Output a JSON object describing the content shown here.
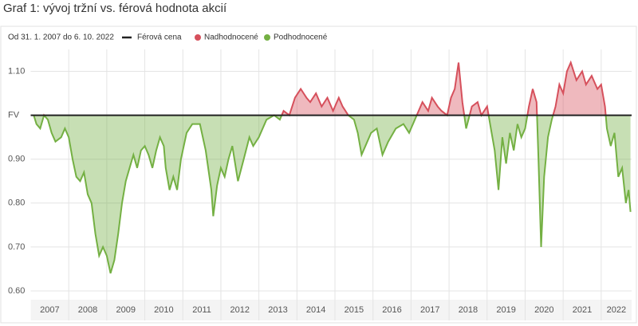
{
  "chart_data": {
    "type": "ratio-area",
    "title": "Graf 1: vývoj tržní vs. férová hodnota akcií",
    "subtitle": "Od 31. 1. 2007 do 6. 10. 2022",
    "fair_value": {
      "name": "Férová cena",
      "value": 1,
      "color": "#222222"
    },
    "above": {
      "name": "Nadhodnocené",
      "color": "#d6505c"
    },
    "below": {
      "name": "Podhodnocené",
      "color": "#74b043"
    },
    "x": [
      2007.08,
      2007.15,
      2007.25,
      2007.35,
      2007.45,
      2007.55,
      2007.65,
      2007.8,
      2007.9,
      2008.0,
      2008.1,
      2008.2,
      2008.3,
      2008.4,
      2008.5,
      2008.6,
      2008.7,
      2008.8,
      2008.9,
      2009.0,
      2009.1,
      2009.2,
      2009.3,
      2009.4,
      2009.5,
      2009.6,
      2009.7,
      2009.8,
      2009.9,
      2010.0,
      2010.1,
      2010.2,
      2010.3,
      2010.4,
      2010.5,
      2010.55,
      2010.65,
      2010.75,
      2010.85,
      2010.95,
      2011.1,
      2011.25,
      2011.45,
      2011.6,
      2011.75,
      2011.8,
      2011.9,
      2012.0,
      2012.1,
      2012.2,
      2012.3,
      2012.45,
      2012.6,
      2012.75,
      2012.85,
      2013.0,
      2013.2,
      2013.4,
      2013.55,
      2013.65,
      2013.8,
      2013.95,
      2014.1,
      2014.25,
      2014.35,
      2014.5,
      2014.65,
      2014.8,
      2014.95,
      2015.1,
      2015.2,
      2015.35,
      2015.5,
      2015.6,
      2015.7,
      2015.8,
      2015.95,
      2016.1,
      2016.25,
      2016.4,
      2016.6,
      2016.8,
      2016.95,
      2017.1,
      2017.3,
      2017.45,
      2017.55,
      2017.7,
      2017.8,
      2017.95,
      2018.05,
      2018.15,
      2018.25,
      2018.35,
      2018.45,
      2018.6,
      2018.75,
      2018.85,
      2019.0,
      2019.1,
      2019.2,
      2019.3,
      2019.4,
      2019.5,
      2019.6,
      2019.7,
      2019.8,
      2019.9,
      2020.0,
      2020.1,
      2020.2,
      2020.3,
      2020.35,
      2020.42,
      2020.5,
      2020.6,
      2020.7,
      2020.8,
      2020.9,
      2021.0,
      2021.1,
      2021.2,
      2021.35,
      2021.5,
      2021.6,
      2021.75,
      2021.9,
      2022.0,
      2022.1,
      2022.15,
      2022.25,
      2022.35,
      2022.45,
      2022.55,
      2022.65,
      2022.72,
      2022.77
    ],
    "values": [
      1.0,
      0.98,
      0.97,
      1.0,
      0.99,
      0.96,
      0.94,
      0.95,
      0.97,
      0.95,
      0.9,
      0.86,
      0.85,
      0.87,
      0.82,
      0.8,
      0.73,
      0.68,
      0.7,
      0.68,
      0.64,
      0.67,
      0.73,
      0.8,
      0.85,
      0.88,
      0.91,
      0.88,
      0.92,
      0.93,
      0.91,
      0.88,
      0.92,
      0.95,
      0.93,
      0.88,
      0.83,
      0.86,
      0.83,
      0.9,
      0.96,
      0.98,
      0.98,
      0.92,
      0.83,
      0.77,
      0.84,
      0.88,
      0.86,
      0.9,
      0.93,
      0.85,
      0.9,
      0.95,
      0.93,
      0.95,
      0.99,
      1.0,
      0.99,
      1.01,
      1.0,
      1.04,
      1.06,
      1.04,
      1.03,
      1.05,
      1.02,
      1.04,
      1.01,
      1.04,
      1.02,
      1.0,
      0.99,
      0.96,
      0.91,
      0.93,
      0.96,
      0.97,
      0.91,
      0.94,
      0.97,
      0.98,
      0.96,
      0.99,
      1.03,
      1.01,
      1.04,
      1.02,
      1.01,
      1.0,
      1.04,
      1.06,
      1.12,
      1.03,
      0.97,
      1.02,
      1.03,
      1.0,
      1.02,
      0.97,
      0.92,
      0.83,
      0.95,
      0.89,
      0.96,
      0.92,
      0.98,
      0.95,
      0.97,
      1.02,
      1.06,
      1.03,
      0.9,
      0.7,
      0.86,
      0.95,
      0.99,
      1.02,
      1.07,
      1.05,
      1.1,
      1.12,
      1.08,
      1.1,
      1.07,
      1.09,
      1.06,
      1.07,
      1.02,
      0.97,
      0.93,
      0.96,
      0.86,
      0.88,
      0.8,
      0.83,
      0.78
    ],
    "xlim": [
      2007,
      2022.8
    ],
    "xticks": [
      {
        "value": 2007.5,
        "label": "2007"
      },
      {
        "value": 2008.5,
        "label": "2008"
      },
      {
        "value": 2009.5,
        "label": "2009"
      },
      {
        "value": 2010.5,
        "label": "2010"
      },
      {
        "value": 2011.5,
        "label": "2011"
      },
      {
        "value": 2012.5,
        "label": "2012"
      },
      {
        "value": 2013.5,
        "label": "2013"
      },
      {
        "value": 2014.5,
        "label": "2014"
      },
      {
        "value": 2015.5,
        "label": "2015"
      },
      {
        "value": 2016.5,
        "label": "2016"
      },
      {
        "value": 2017.5,
        "label": "2017"
      },
      {
        "value": 2018.5,
        "label": "2018"
      },
      {
        "value": 2019.5,
        "label": "2019"
      },
      {
        "value": 2020.5,
        "label": "2020"
      },
      {
        "value": 2021.5,
        "label": "2021"
      },
      {
        "value": 2022.4,
        "label": "2022"
      }
    ],
    "ylim": [
      0.58,
      1.15
    ],
    "yticks": [
      {
        "value": 0.6,
        "label": "0.60"
      },
      {
        "value": 0.7,
        "label": "0.70"
      },
      {
        "value": 0.8,
        "label": "0.80"
      },
      {
        "value": 0.9,
        "label": "0.90"
      },
      {
        "value": 1,
        "label": "FV"
      },
      {
        "value": 1.1,
        "label": "1.10"
      }
    ],
    "grid": true
  }
}
